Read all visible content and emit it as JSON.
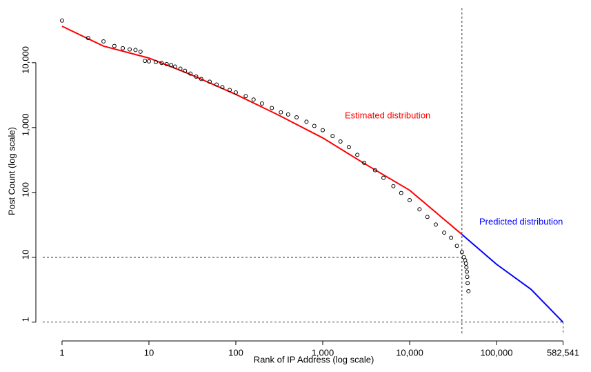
{
  "chart_data": {
    "type": "scatter",
    "x_label": "Rank of IP Address (log scale)",
    "y_label": "Post Count (log scale)",
    "xlog": true,
    "ylog": true,
    "xlim": [
      0.6,
      1037000
    ],
    "ylim": [
      0.64,
      69000
    ],
    "xticks": [
      1,
      10,
      100,
      {
        "value": 1000,
        "label": "1,000"
      },
      {
        "value": 10000,
        "label": "10,000"
      },
      {
        "value": 100000,
        "label": "100,000"
      },
      {
        "value": 582541,
        "label": "582,541"
      }
    ],
    "yticks": [
      1,
      10,
      100,
      {
        "value": 1000,
        "label": "1,000"
      },
      {
        "value": 10000,
        "label": "10,000"
      }
    ],
    "points": {
      "color": "#000000",
      "x": [
        1,
        2,
        3,
        4,
        5,
        6,
        7,
        8,
        9,
        10,
        12,
        14,
        16,
        18,
        20,
        23,
        26,
        30,
        35,
        40,
        50,
        60,
        70,
        85,
        100,
        130,
        160,
        200,
        260,
        330,
        400,
        500,
        650,
        800,
        1000,
        1300,
        1600,
        2000,
        2500,
        3000,
        4000,
        5000,
        6500,
        8000,
        10000,
        13000,
        16000,
        20000,
        25000,
        30000,
        35000,
        40000,
        42000,
        43500,
        44500,
        45000,
        45500,
        46000,
        46500,
        47500
      ],
      "values": [
        44600,
        24000,
        21300,
        18100,
        16700,
        16000,
        15700,
        14800,
        10700,
        10500,
        10200,
        9900,
        9500,
        9200,
        8700,
        8100,
        7500,
        6800,
        6100,
        5600,
        5100,
        4600,
        4200,
        3800,
        3470,
        3050,
        2700,
        2350,
        2000,
        1720,
        1590,
        1440,
        1230,
        1060,
        910,
        740,
        610,
        500,
        380,
        286,
        220,
        168,
        125,
        98,
        76,
        55,
        42,
        32,
        24,
        20,
        15,
        12,
        10,
        9,
        8,
        7,
        6,
        5,
        4,
        3
      ]
    },
    "series": [
      {
        "name": "Estimated distribution",
        "color": "#ff0000",
        "x": [
          1,
          3,
          10,
          30,
          100,
          300,
          1000,
          3000,
          10000,
          40000
        ],
        "values": [
          36500,
          18000,
          11800,
          6600,
          3240,
          1590,
          693,
          280,
          108,
          22.5
        ]
      },
      {
        "name": "Predicted distribution",
        "color": "#0000ff",
        "x": [
          40000,
          100000,
          250000,
          582541
        ],
        "values": [
          22.5,
          7.8,
          3.2,
          1
        ]
      }
    ],
    "reference_lines": {
      "x": [
        40000,
        582541
      ],
      "y": [
        10,
        1
      ]
    }
  }
}
